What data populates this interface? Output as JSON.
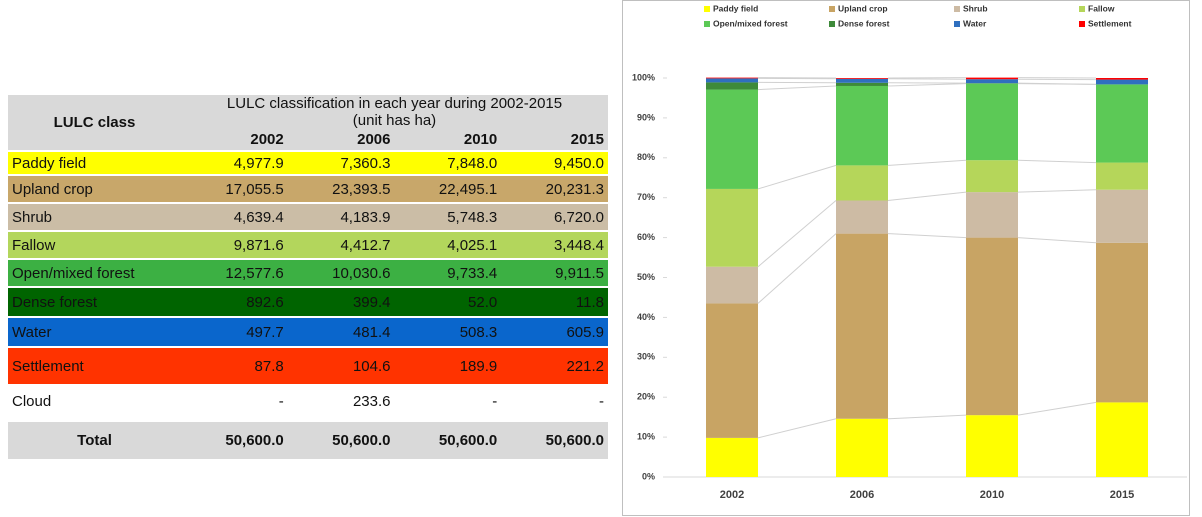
{
  "table": {
    "row_header": "LULC class",
    "group_header": "LULC classification in each year during 2002-2015 (unit has ha)",
    "years": [
      "2002",
      "2006",
      "2010",
      "2015"
    ],
    "rows": [
      {
        "cells": [
          "Paddy field",
          "4,977.9",
          "7,360.3",
          "7,848.0",
          "9,450.0"
        ],
        "color": "#ffff00"
      },
      {
        "cells": [
          "Upland crop",
          "17,055.5",
          "23,393.5",
          "22,495.1",
          "20,231.3"
        ],
        "color": "#c8a76a"
      },
      {
        "cells": [
          "Shrub",
          "4,639.4",
          "4,183.9",
          "5,748.3",
          "6,720.0"
        ],
        "color": "#cbbda6"
      },
      {
        "cells": [
          "Fallow",
          "9,871.6",
          "4,412.7",
          "4,025.1",
          "3,448.4"
        ],
        "color": "#b3d65c"
      },
      {
        "cells": [
          "Open/mixed forest",
          "12,577.6",
          "10,030.6",
          "9,733.4",
          "9,911.5"
        ],
        "color": "#3cb043"
      },
      {
        "cells": [
          "Dense forest",
          "892.6",
          "399.4",
          "52.0",
          "11.8"
        ],
        "color": "#006400"
      },
      {
        "cells": [
          "Water",
          "497.7",
          "481.4",
          "508.3",
          "605.9"
        ],
        "color": "#0a66cc"
      },
      {
        "cells": [
          "Settlement",
          "87.8",
          "104.6",
          "189.9",
          "221.2"
        ],
        "color": "#ff3300"
      },
      {
        "cells": [
          "Cloud",
          "-",
          "233.6",
          "-",
          "-"
        ],
        "color": "#ffffff"
      }
    ],
    "total": [
      "Total",
      "50,600.0",
      "50,600.0",
      "50,600.0",
      "50,600.0"
    ]
  },
  "chart_data": {
    "type": "stacked_bar_100",
    "categories": [
      "2002",
      "2006",
      "2010",
      "2015"
    ],
    "series": [
      {
        "name": "Paddy field",
        "color": "#ffff00",
        "values": [
          9.8,
          14.6,
          15.5,
          18.7
        ]
      },
      {
        "name": "Upland crop",
        "color": "#c8a464",
        "values": [
          33.7,
          46.4,
          44.5,
          40.0
        ]
      },
      {
        "name": "Shrub",
        "color": "#cdbba4",
        "values": [
          9.2,
          8.3,
          11.4,
          13.3
        ]
      },
      {
        "name": "Fallow",
        "color": "#b5d65a",
        "values": [
          19.5,
          8.8,
          8.0,
          6.8
        ]
      },
      {
        "name": "Open/mixed forest",
        "color": "#5cc956",
        "values": [
          24.9,
          19.9,
          19.2,
          19.6
        ]
      },
      {
        "name": "Dense forest",
        "color": "#3e8a3a",
        "values": [
          1.8,
          0.8,
          0.1,
          0.0
        ]
      },
      {
        "name": "Water",
        "color": "#2f6fbf",
        "values": [
          1.0,
          1.0,
          1.0,
          1.2
        ]
      },
      {
        "name": "Settlement",
        "color": "#ff0000",
        "values": [
          0.2,
          0.2,
          0.4,
          0.4
        ]
      }
    ],
    "ylim": [
      0,
      100
    ],
    "yticks": [
      {
        "value": 0,
        "label": "0%"
      },
      {
        "value": 10,
        "label": "10%"
      },
      {
        "value": 20,
        "label": "20%"
      },
      {
        "value": 30,
        "label": "30%"
      },
      {
        "value": 40,
        "label": "40%"
      },
      {
        "value": 50,
        "label": "50%"
      },
      {
        "value": 60,
        "label": "60%"
      },
      {
        "value": 70,
        "label": "70%"
      },
      {
        "value": 80,
        "label": "80%"
      },
      {
        "value": 90,
        "label": "90%"
      },
      {
        "value": 100,
        "label": "100%"
      }
    ],
    "legend": "top"
  }
}
